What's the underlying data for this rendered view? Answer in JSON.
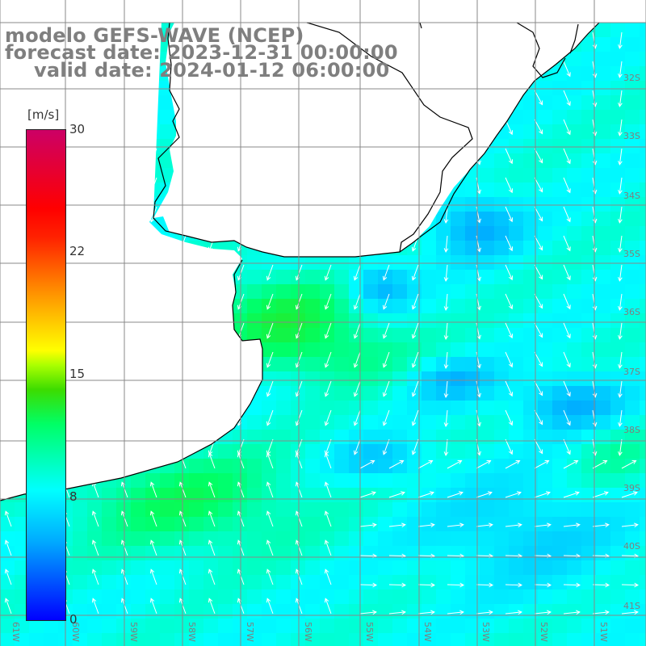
{
  "title": {
    "line1": "modelo GEFS-WAVE (NCEP)",
    "line2": "forecast date: 2023-12-31 00:00:00",
    "line3": "valid date: 2024-01-12 06:00:00"
  },
  "colorbar": {
    "unit": "[m/s]",
    "min": 0,
    "max": 30,
    "ticks": [
      "30",
      "22",
      "15",
      "8",
      "0"
    ],
    "tick_values": [
      30,
      22,
      15,
      8,
      0
    ],
    "colors": [
      "#0000ff",
      "#00aaff",
      "#00ffff",
      "#00ff66",
      "#3cdc00",
      "#aaff00",
      "#ffff00",
      "#ff9900",
      "#ff0000",
      "#cc0066"
    ]
  },
  "map": {
    "variable": "wind speed and direction",
    "lat_labels": [
      "32S",
      "33S",
      "34S",
      "35S",
      "36S",
      "37S",
      "38S",
      "39S",
      "40S",
      "41S"
    ],
    "lon_labels": [
      "61W",
      "60W",
      "59W",
      "58W",
      "57W",
      "56W",
      "55W",
      "54W",
      "53W",
      "52W",
      "51W"
    ],
    "colors": {
      "land": "#ffffff",
      "grid": "#888888",
      "coastline": "#000000",
      "vectors": "#ffffff"
    }
  }
}
